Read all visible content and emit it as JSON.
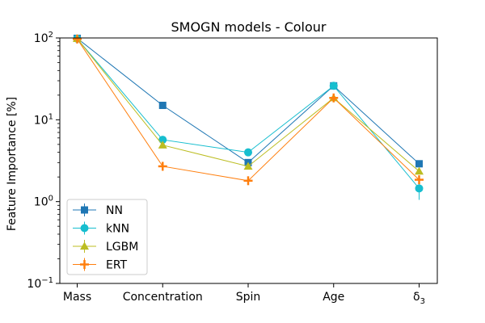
{
  "chart_data": {
    "type": "line",
    "title": "SMOGN models - Colour",
    "xlabel": "",
    "ylabel": "Feature Importance [%]",
    "yscale": "log",
    "ylim": [
      0.1,
      100
    ],
    "categories": [
      "Mass",
      "Concentration",
      "Spin",
      "Age",
      "δ3"
    ],
    "category_display": [
      {
        "base": "Mass",
        "sub": ""
      },
      {
        "base": "Concentration",
        "sub": ""
      },
      {
        "base": "Spin",
        "sub": ""
      },
      {
        "base": "Age",
        "sub": ""
      },
      {
        "base": "δ",
        "sub": "3"
      }
    ],
    "y_ticks": [
      {
        "value": 0.1,
        "base": "10",
        "exp": "−1"
      },
      {
        "value": 1,
        "base": "10",
        "exp": "0"
      },
      {
        "value": 10,
        "base": "10",
        "exp": "1"
      },
      {
        "value": 100,
        "base": "10",
        "exp": "2"
      }
    ],
    "legend_position": "lower-left",
    "series": [
      {
        "name": "NN",
        "color": "#1f77b4",
        "marker": "square",
        "values": [
          99,
          15,
          3.0,
          26,
          2.9
        ]
      },
      {
        "name": "kNN",
        "color": "#17becf",
        "marker": "circle",
        "values": [
          98,
          5.7,
          4.0,
          26,
          1.45
        ],
        "errors": [
          0,
          0,
          0,
          0,
          0.4
        ]
      },
      {
        "name": "LGBM",
        "color": "#bcbd22",
        "marker": "triangle",
        "values": [
          98,
          4.9,
          2.7,
          18.5,
          2.35
        ]
      },
      {
        "name": "ERT",
        "color": "#ff7f0e",
        "marker": "plus",
        "values": [
          97,
          2.7,
          1.8,
          18.5,
          1.85
        ]
      }
    ]
  }
}
